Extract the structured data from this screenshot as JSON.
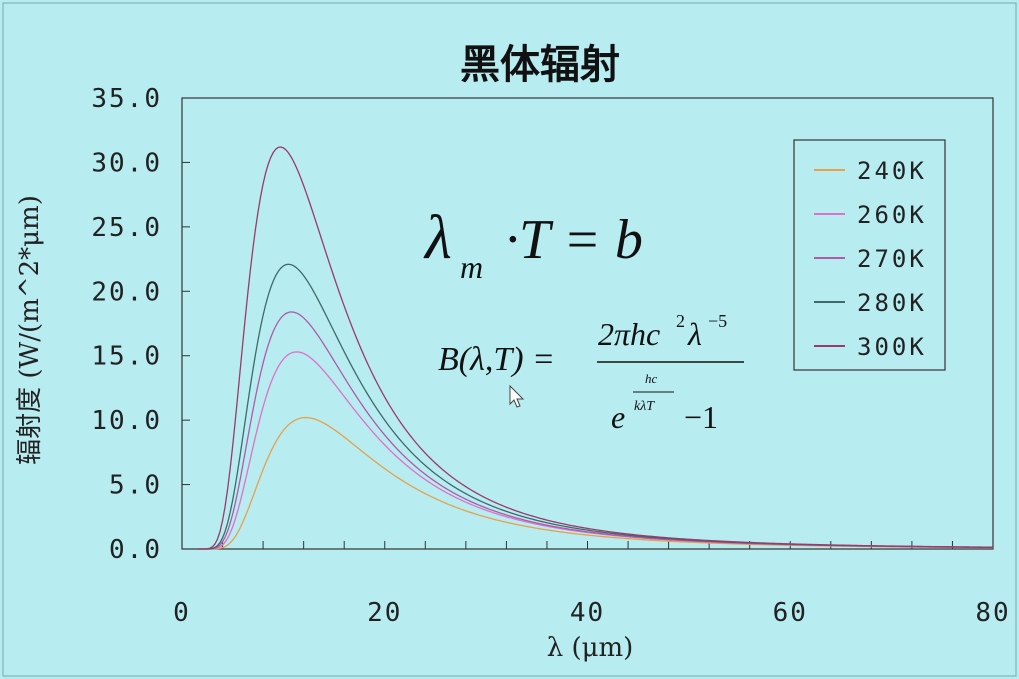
{
  "chart_data": {
    "type": "line",
    "title": "黑体辐射",
    "xlabel": "λ (μm)",
    "ylabel": "辐射度 (W/(m^2*μm)",
    "xlim": [
      0,
      80
    ],
    "ylim": [
      0,
      35
    ],
    "x_ticks": [
      "0",
      "20",
      "40",
      "60",
      "80"
    ],
    "y_ticks": [
      "0.0",
      "5.0",
      "10.0",
      "15.0",
      "20.0",
      "25.0",
      "30.0",
      "35.0"
    ],
    "legend_position": "top-right",
    "grid": false,
    "series": [
      {
        "name": "240K",
        "color": "#e8a04a",
        "temperature": 240
      },
      {
        "name": "260K",
        "color": "#e070c8",
        "temperature": 260
      },
      {
        "name": "270K",
        "color": "#b05aa8",
        "temperature": 270
      },
      {
        "name": "280K",
        "color": "#3f6a6a",
        "temperature": 280
      },
      {
        "name": "300K",
        "color": "#9a3a6a",
        "temperature": 300
      }
    ],
    "peaks": [
      {
        "series": "240K",
        "x": 12.2,
        "y": 10.2
      },
      {
        "series": "260K",
        "x": 11.3,
        "y": 15.3
      },
      {
        "series": "270K",
        "x": 10.8,
        "y": 18.4
      },
      {
        "series": "280K",
        "x": 10.5,
        "y": 22.1
      },
      {
        "series": "300K",
        "x": 9.7,
        "y": 31.2
      }
    ]
  },
  "annotations": {
    "wien": {
      "lambda": "λ",
      "sub": "m",
      "rest": "·T = b"
    },
    "planck": {
      "lhs": "B(λ,T) =",
      "numerator": "2πhc",
      "num_sup1": "2",
      "num_lambda": "λ",
      "num_sup2": "−5",
      "den_e": "e",
      "den_exp_num": "hc",
      "den_exp_den": "kλT",
      "den_rest": "−1"
    }
  }
}
